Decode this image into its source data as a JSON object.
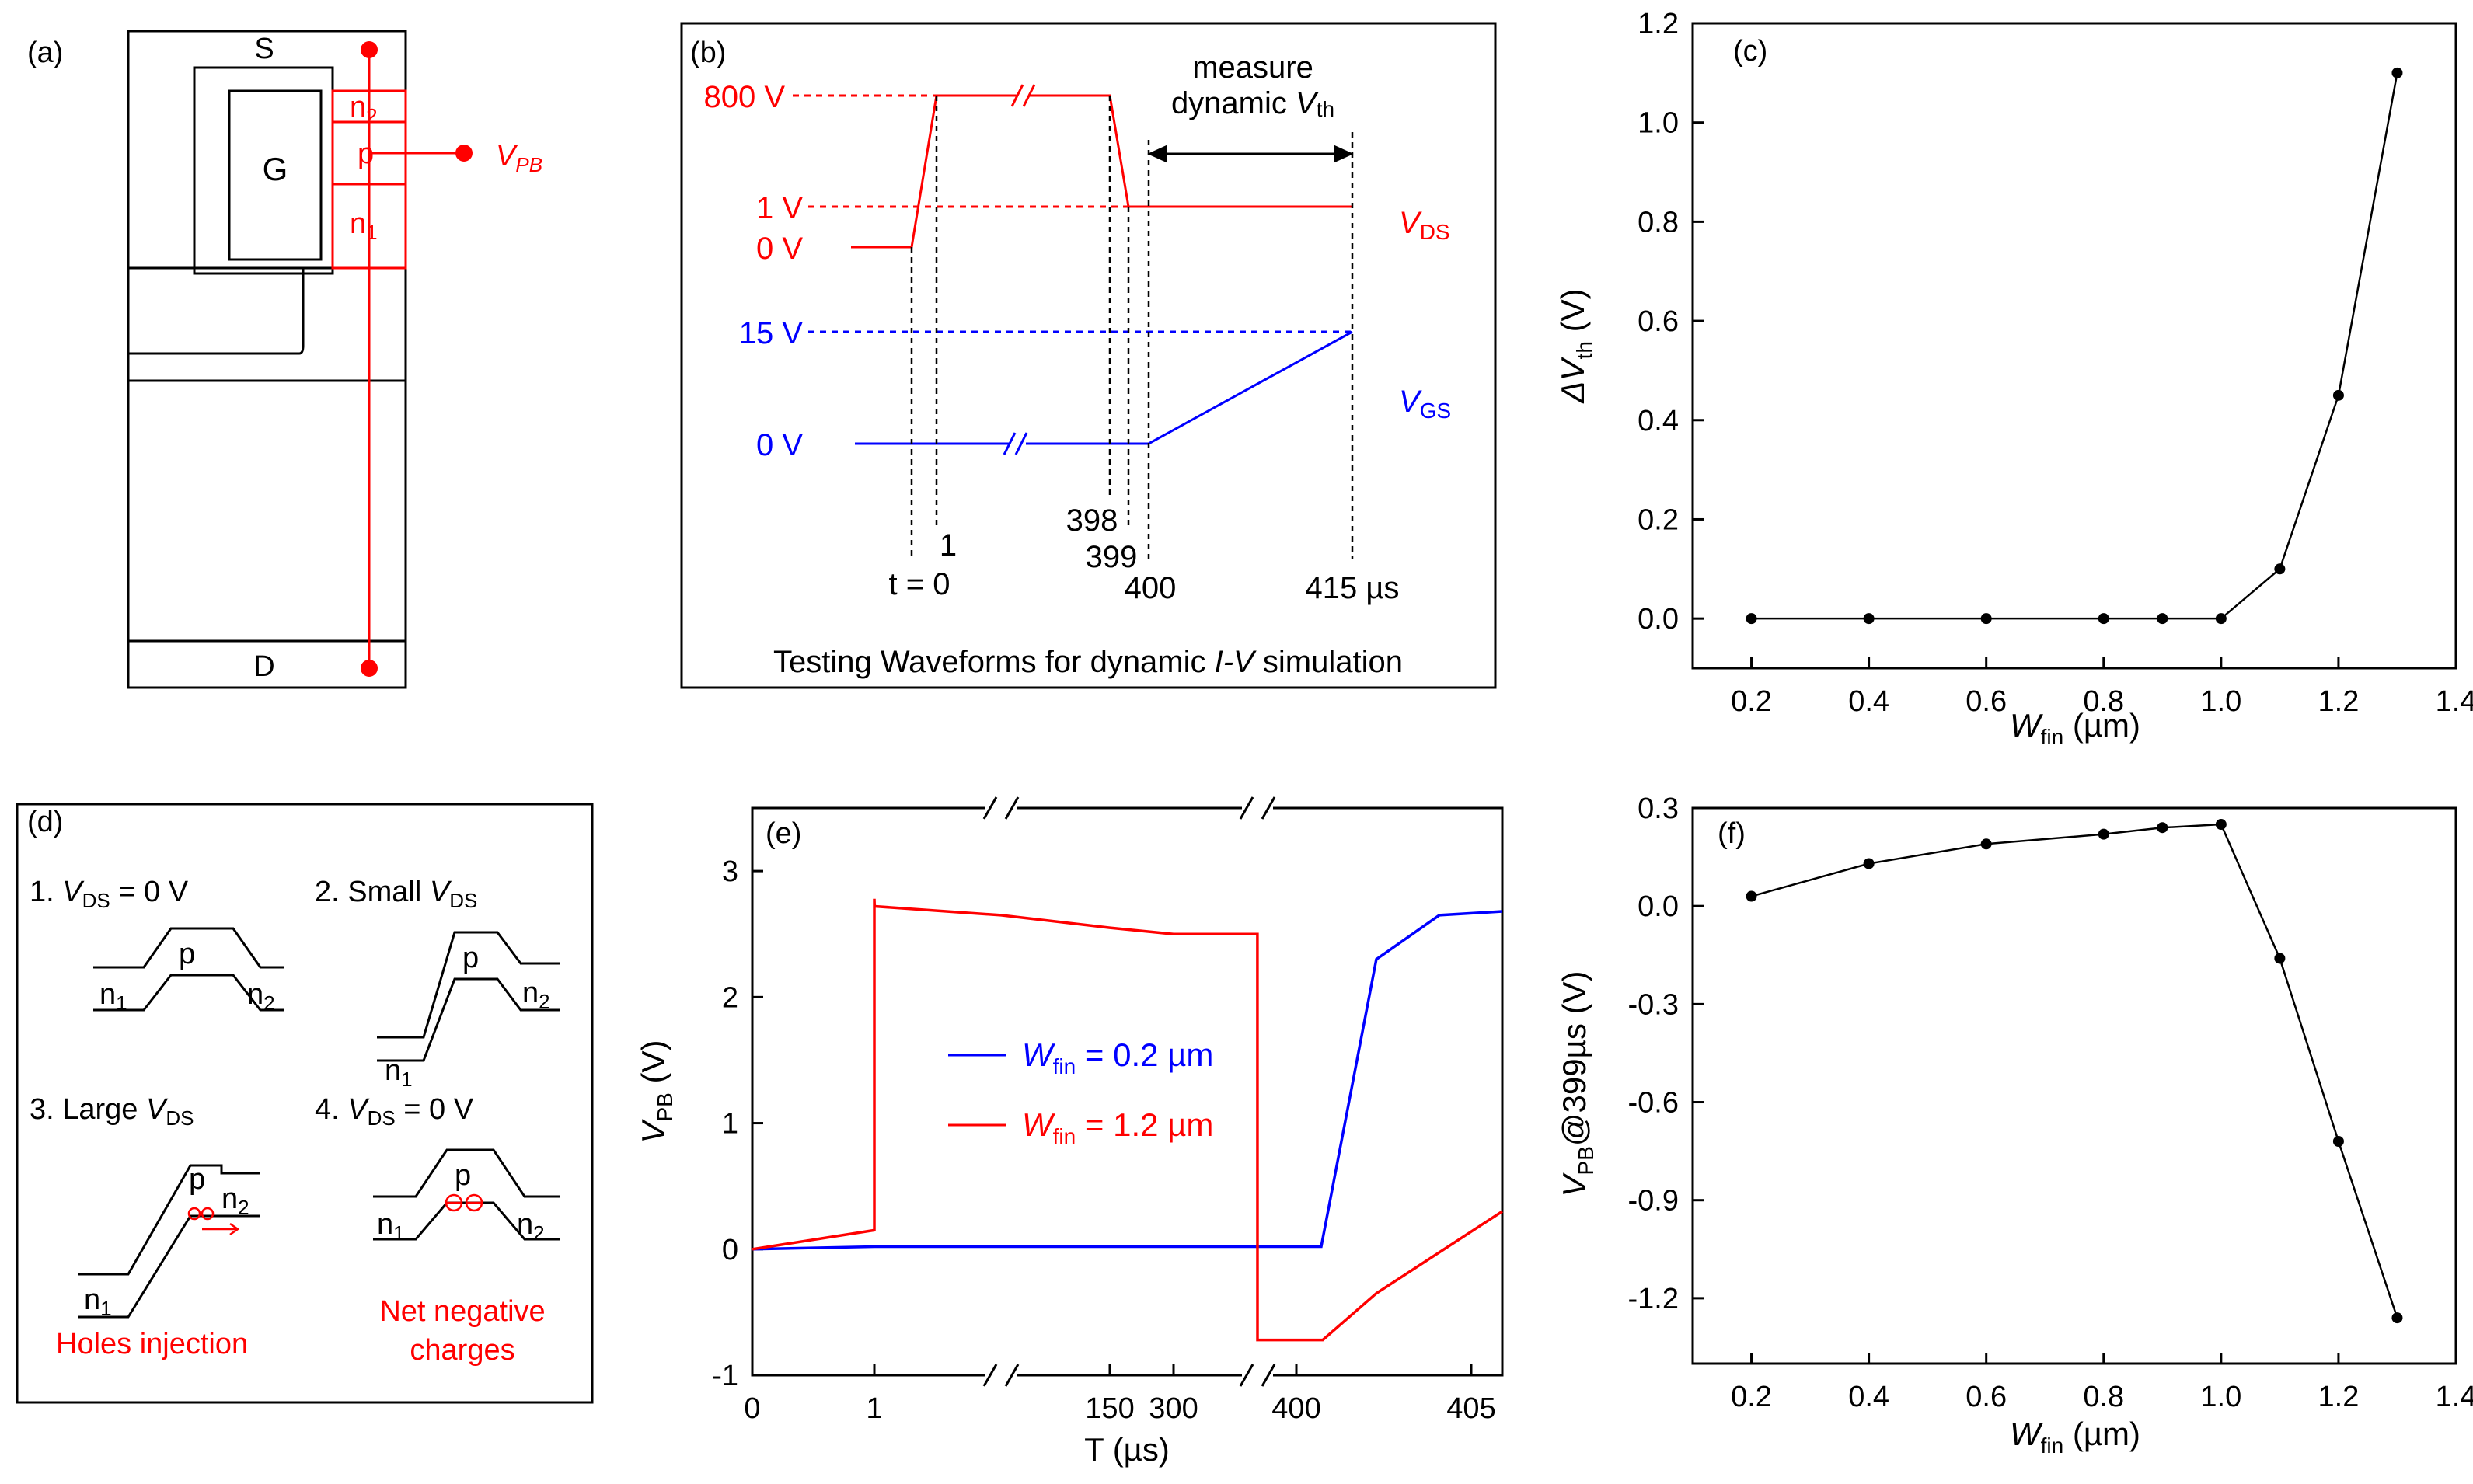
{
  "colors": {
    "red": "#ff0000",
    "blue": "#0000ff",
    "black": "#000000"
  },
  "panel_a": {
    "label": "(a)",
    "source": "S",
    "gate": "G",
    "drain": "D",
    "n2": "n",
    "n2_sub": "2",
    "p": "p",
    "n1": "n",
    "n1_sub": "1",
    "vpb": "V",
    "vpb_sub": "PB"
  },
  "panel_b": {
    "label": "(b)",
    "v800": "800 V",
    "v1": "1 V",
    "v0_red": "0 V",
    "v15": "15 V",
    "v0_blue": "0 V",
    "vds": "V",
    "vds_sub": "DS",
    "vgs": "V",
    "vgs_sub": "GS",
    "measure1": "measure",
    "measure2": "dynamic ",
    "measure_v": "V",
    "measure_sub": "th",
    "t1": "1",
    "t0": "t = 0",
    "t398": "398",
    "t399": "399",
    "t400": "400",
    "t415": "415 µs",
    "caption_pre": "Testing Waveforms for dynamic ",
    "caption_iv": "I-V",
    "caption_post": " simulation"
  },
  "panel_d": {
    "label": "(d)",
    "s1_pre": "1. ",
    "s1_v": "V",
    "s1_sub": "DS",
    "s1_post": " = 0 V",
    "s2_pre": "2. Small ",
    "s2_v": "V",
    "s2_sub": "DS",
    "s3_pre": "3. Large ",
    "s3_v": "V",
    "s3_sub": "DS",
    "s4_pre": "4. ",
    "s4_v": "V",
    "s4_sub": "DS",
    "s4_post": " = 0 V",
    "p": "p",
    "n": "n",
    "sub1": "1",
    "sub2": "2",
    "holes": "Holes injection",
    "net1": "Net negative",
    "net2": "charges"
  },
  "chart_data": [
    {
      "id": "c",
      "type": "line",
      "label": "(c)",
      "x": [
        0.2,
        0.4,
        0.6,
        0.8,
        0.9,
        1.0,
        1.1,
        1.2,
        1.3
      ],
      "y": [
        0,
        0,
        0,
        0,
        0,
        0,
        0.1,
        0.45,
        1.1
      ],
      "xlim": [
        0.1,
        1.4
      ],
      "ylim": [
        -0.1,
        1.2
      ],
      "xticks": [
        "0.2",
        "0.4",
        "0.6",
        "0.8",
        "1.0",
        "1.2",
        "1.4"
      ],
      "yticks": [
        "0.0",
        "0.2",
        "0.4",
        "0.6",
        "0.8",
        "1.0",
        "1.2"
      ],
      "xlabel": "W",
      "xlabel_sub": "fin",
      "xlabel_unit": " (µm)",
      "ylabel": "ΔV",
      "ylabel_sub": "th",
      "ylabel_unit": " (V)"
    },
    {
      "id": "e",
      "type": "line",
      "label": "(e)",
      "xticks": [
        "0",
        "1",
        "150",
        "300",
        "400",
        "405"
      ],
      "yticks": [
        "-1",
        "0",
        "1",
        "2",
        "3"
      ],
      "ylim": [
        -1,
        3.5
      ],
      "xlabel": "T (µs)",
      "ylabel": "V",
      "ylabel_sub": "PB",
      "ylabel_unit": " (V)",
      "series": [
        {
          "name": "W",
          "name_sub": "fin",
          "name_post": " = 0.2 µm",
          "color": "#0000ff",
          "t": [
            0,
            1,
            400,
            400.25,
            402,
            404,
            406
          ],
          "v": [
            0,
            0.02,
            0.02,
            0.02,
            2.3,
            2.65,
            2.68
          ]
        },
        {
          "name": "W",
          "name_sub": "fin",
          "name_post": " = 1.2 µm",
          "color": "#ff0000",
          "t": [
            0,
            1,
            1,
            1.2,
            100,
            150,
            300,
            399.9,
            400,
            400.3,
            402,
            406
          ],
          "v": [
            0,
            0.15,
            2.78,
            2.72,
            2.65,
            2.55,
            2.5,
            2.5,
            -0.72,
            -0.72,
            -0.35,
            0.3
          ]
        }
      ]
    },
    {
      "id": "f",
      "type": "line",
      "label": "(f)",
      "x": [
        0.2,
        0.4,
        0.6,
        0.8,
        0.9,
        1.0,
        1.1,
        1.2,
        1.3
      ],
      "y": [
        0.03,
        0.13,
        0.19,
        0.22,
        0.24,
        0.25,
        -0.16,
        -0.72,
        -1.26
      ],
      "xlim": [
        0.1,
        1.4
      ],
      "ylim": [
        -1.4,
        0.3
      ],
      "xticks": [
        "0.2",
        "0.4",
        "0.6",
        "0.8",
        "1.0",
        "1.2",
        "1.4"
      ],
      "yticks": [
        "0.3",
        "0.0",
        "-0.3",
        "-0.6",
        "-0.9",
        "-1.2"
      ],
      "xlabel": "W",
      "xlabel_sub": "fin",
      "xlabel_unit": " (µm)",
      "ylabel": "V",
      "ylabel_sub": "PB",
      "ylabel_unit": "@399µs (V)"
    }
  ]
}
